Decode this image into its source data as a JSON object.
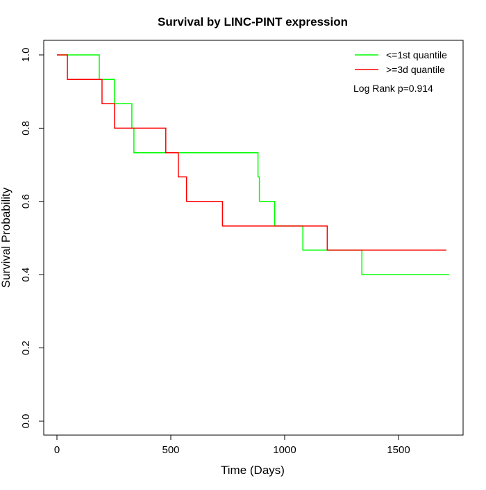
{
  "chart_data": {
    "type": "line",
    "step": true,
    "title": "Survival by LINC-PINT expression",
    "xlabel": "Time (Days)",
    "ylabel": "Survival Probability",
    "xlim": [
      0,
      1750
    ],
    "ylim": [
      0,
      1.0
    ],
    "xticks": [
      0,
      500,
      1000,
      1500
    ],
    "xtick_labels": [
      "0",
      "500",
      "1000",
      "1500"
    ],
    "yticks": [
      0,
      0.2,
      0.4,
      0.6,
      0.8,
      1.0
    ],
    "ytick_labels": [
      "0.0",
      "0.2",
      "0.4",
      "0.6",
      "0.8",
      "1.0"
    ],
    "grid": false,
    "legend_position": "top-right",
    "annotation": "Log Rank p=0.914",
    "series": [
      {
        "name": "<=1st quantile",
        "color": "#00ff00",
        "x": [
          0,
          186,
          253,
          329,
          338,
          883,
          889,
          956,
          1080,
          1339,
          1722
        ],
        "y": [
          1.0,
          0.933,
          0.867,
          0.8,
          0.733,
          0.667,
          0.6,
          0.533,
          0.467,
          0.4,
          0.4
        ]
      },
      {
        "name": ">=3d quantile",
        "color": "#ff0000",
        "x": [
          0,
          46,
          198,
          253,
          478,
          533,
          569,
          727,
          1187,
          1710
        ],
        "y": [
          1.0,
          0.933,
          0.867,
          0.8,
          0.733,
          0.667,
          0.6,
          0.533,
          0.467,
          0.467
        ]
      }
    ]
  }
}
